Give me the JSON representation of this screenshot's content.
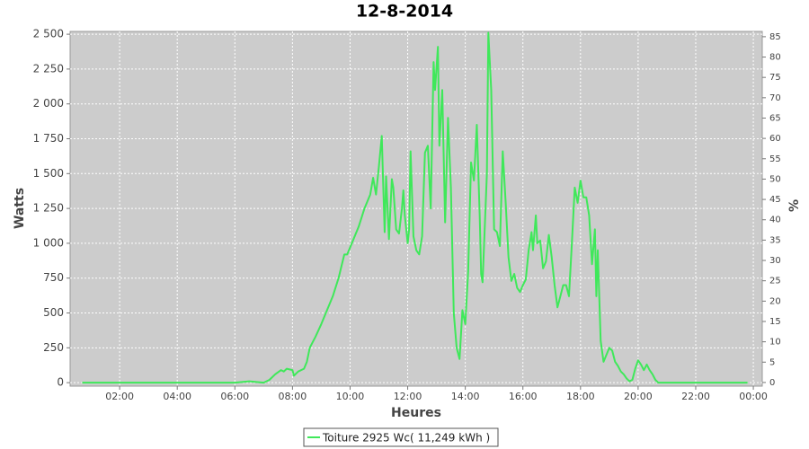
{
  "chart_data": {
    "type": "line",
    "title": "12-8-2014",
    "x_label": "Heures",
    "y_label": "Watts",
    "y2_label": "%",
    "xlim": [
      0.28,
      24.31
    ],
    "xticks": [
      {
        "value": 2,
        "label": "02:00"
      },
      {
        "value": 4,
        "label": "04:00"
      },
      {
        "value": 6,
        "label": "06:00"
      },
      {
        "value": 8,
        "label": "08:00"
      },
      {
        "value": 10,
        "label": "10:00"
      },
      {
        "value": 12,
        "label": "12:00"
      },
      {
        "value": 14,
        "label": "14:00"
      },
      {
        "value": 16,
        "label": "16:00"
      },
      {
        "value": 18,
        "label": "18:00"
      },
      {
        "value": 20,
        "label": "20:00"
      },
      {
        "value": 22,
        "label": "22:00"
      },
      {
        "value": 24,
        "label": "00:00"
      }
    ],
    "ylim": [
      -25,
      2520
    ],
    "yticks": [
      0,
      250,
      500,
      750,
      {
        "value": 1000,
        "label": "1 000"
      },
      {
        "value": 1250,
        "label": "1 250"
      },
      {
        "value": 1500,
        "label": "1 500"
      },
      {
        "value": 1750,
        "label": "1 750"
      },
      {
        "value": 2000,
        "label": "2 000"
      },
      {
        "value": 2250,
        "label": "2 250"
      },
      {
        "value": 2500,
        "label": "2 500"
      }
    ],
    "y2lim": [
      -0.9,
      86.3
    ],
    "y2ticks": [
      0,
      5,
      10,
      15,
      20,
      25,
      30,
      35,
      40,
      45,
      50,
      55,
      60,
      65,
      70,
      75,
      80,
      85
    ],
    "grid": true,
    "legend": "bottom",
    "x": [
      0.7,
      6.0,
      6.5,
      7.0,
      7.2,
      7.4,
      7.6,
      7.7,
      7.8,
      8.0,
      8.05,
      8.2,
      8.4,
      8.5,
      8.6,
      8.8,
      9.0,
      9.2,
      9.4,
      9.6,
      9.8,
      9.9,
      10.1,
      10.3,
      10.5,
      10.7,
      10.8,
      10.9,
      11.0,
      11.1,
      11.2,
      11.25,
      11.35,
      11.45,
      11.5,
      11.6,
      11.7,
      11.8,
      11.85,
      11.9,
      12.0,
      12.05,
      12.1,
      12.2,
      12.3,
      12.4,
      12.5,
      12.6,
      12.7,
      12.8,
      12.9,
      12.95,
      13.05,
      13.1,
      13.2,
      13.3,
      13.4,
      13.5,
      13.6,
      13.7,
      13.8,
      13.9,
      14.0,
      14.1,
      14.2,
      14.3,
      14.4,
      14.5,
      14.55,
      14.6,
      14.75,
      14.8,
      14.9,
      15.0,
      15.1,
      15.2,
      15.3,
      15.4,
      15.5,
      15.6,
      15.7,
      15.8,
      15.9,
      16.0,
      16.1,
      16.2,
      16.3,
      16.35,
      16.45,
      16.5,
      16.6,
      16.7,
      16.8,
      16.9,
      17.0,
      17.1,
      17.2,
      17.3,
      17.4,
      17.5,
      17.6,
      17.7,
      17.8,
      17.9,
      18.0,
      18.1,
      18.2,
      18.3,
      18.4,
      18.5,
      18.55,
      18.6,
      18.7,
      18.8,
      18.9,
      19.0,
      19.1,
      19.2,
      19.3,
      19.4,
      19.5,
      19.6,
      19.7,
      19.8,
      19.9,
      20.0,
      20.1,
      20.2,
      20.3,
      20.4,
      20.5,
      20.6,
      20.7,
      22.0,
      23.8
    ],
    "series": [
      {
        "name": "Toiture 2925 Wc( 11,249 kWh )",
        "color": "#3fe85a",
        "values": [
          0,
          0,
          10,
          0,
          20,
          60,
          90,
          80,
          100,
          90,
          50,
          80,
          100,
          150,
          250,
          330,
          420,
          520,
          620,
          750,
          920,
          920,
          1020,
          1120,
          1250,
          1350,
          1470,
          1350,
          1550,
          1770,
          1080,
          1480,
          1030,
          1460,
          1400,
          1100,
          1070,
          1250,
          1380,
          1200,
          1000,
          1100,
          1660,
          1050,
          950,
          920,
          1050,
          1650,
          1700,
          1250,
          2300,
          2100,
          2410,
          1700,
          2100,
          1150,
          1900,
          1400,
          500,
          250,
          170,
          520,
          420,
          800,
          1580,
          1450,
          1850,
          1200,
          780,
          720,
          1500,
          2510,
          2100,
          1100,
          1080,
          980,
          1660,
          1300,
          900,
          730,
          780,
          680,
          650,
          700,
          740,
          950,
          1080,
          950,
          1200,
          1000,
          1020,
          820,
          870,
          1060,
          900,
          700,
          540,
          620,
          700,
          700,
          620,
          1000,
          1400,
          1290,
          1450,
          1330,
          1330,
          1200,
          850,
          1100,
          620,
          950,
          300,
          150,
          200,
          250,
          230,
          150,
          120,
          80,
          60,
          30,
          10,
          20,
          100,
          160,
          130,
          90,
          130,
          90,
          60,
          20,
          0,
          0,
          0
        ]
      }
    ]
  }
}
